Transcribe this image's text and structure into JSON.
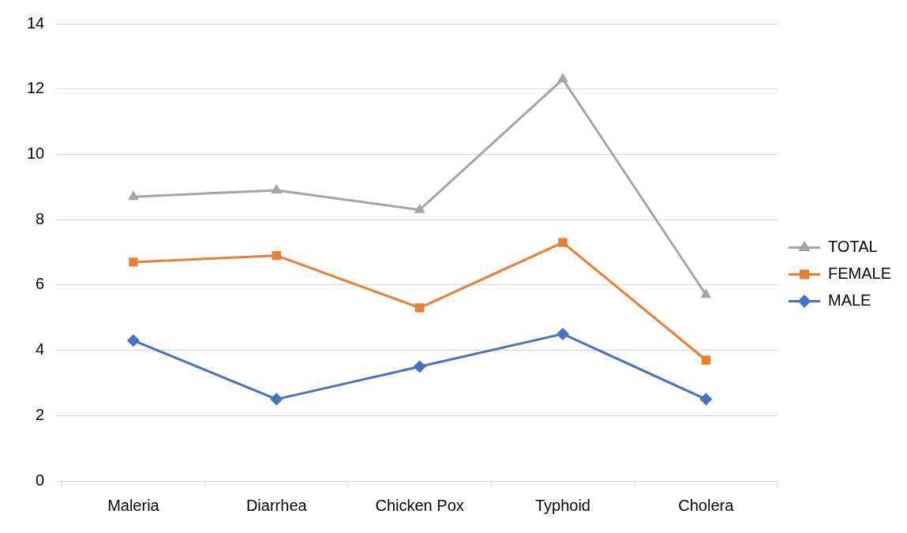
{
  "chart_data": {
    "type": "line",
    "categories": [
      "Maleria",
      "Diarrhea",
      "Chicken Pox",
      "Typhoid",
      "Cholera"
    ],
    "series": [
      {
        "name": "TOTAL",
        "color": "#a5a5a5",
        "marker": "triangle",
        "values": [
          8.7,
          8.9,
          8.3,
          12.3,
          5.7
        ]
      },
      {
        "name": "FEMALE",
        "color": "#ed7d31",
        "marker": "square",
        "values": [
          6.7,
          6.9,
          5.3,
          7.3,
          3.7
        ]
      },
      {
        "name": "MALE",
        "color": "#4472c4",
        "marker": "diamond",
        "values": [
          4.3,
          2.5,
          3.5,
          4.5,
          2.5
        ]
      }
    ],
    "ylim": [
      0,
      14
    ],
    "yticks": [
      0,
      2,
      4,
      6,
      8,
      10,
      12,
      14
    ],
    "grid": "y",
    "legend": "right",
    "line_style": "solid"
  }
}
